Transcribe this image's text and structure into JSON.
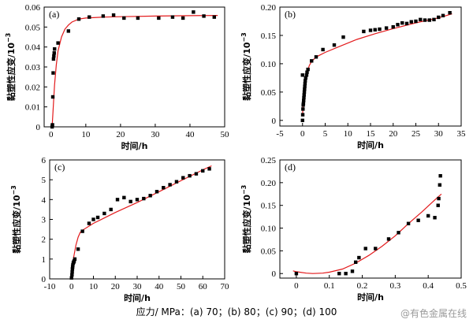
{
  "caption": "应力/ MPa：(a) 70；(b) 80；(c) 90；(d) 100",
  "watermark": "@有色金属在线",
  "chart_data": [
    {
      "panel": "(a)",
      "type": "scatter",
      "xlabel": "时间/h",
      "ylabel": "黏塑性应变/10",
      "ylabel_exp": "−3",
      "xlim": [
        -2,
        50
      ],
      "ylim": [
        0,
        0.06
      ],
      "xticks": [
        0,
        10,
        20,
        30,
        40,
        50
      ],
      "yticks": [
        "0",
        "0.01",
        "0.02",
        "0.03",
        "0.04",
        "0.05",
        "0.06"
      ],
      "points": [
        [
          0.3,
          0
        ],
        [
          0.4,
          0.001
        ],
        [
          0.5,
          0.015
        ],
        [
          0.6,
          0.027
        ],
        [
          0.7,
          0.034
        ],
        [
          0.8,
          0.0355
        ],
        [
          0.9,
          0.037
        ],
        [
          1,
          0.039
        ],
        [
          2,
          0.042
        ],
        [
          5,
          0.048
        ],
        [
          8,
          0.054
        ],
        [
          11,
          0.055
        ],
        [
          15,
          0.0555
        ],
        [
          18,
          0.056
        ],
        [
          21,
          0.0545
        ],
        [
          25,
          0.0545
        ],
        [
          31,
          0.0545
        ],
        [
          35,
          0.055
        ],
        [
          38,
          0.0545
        ],
        [
          41,
          0.0575
        ],
        [
          44,
          0.0555
        ],
        [
          47,
          0.055
        ]
      ],
      "fit": [
        [
          0.3,
          0
        ],
        [
          0.5,
          0.006
        ],
        [
          0.8,
          0.015
        ],
        [
          1,
          0.021
        ],
        [
          1.5,
          0.031
        ],
        [
          2,
          0.038
        ],
        [
          3,
          0.045
        ],
        [
          4,
          0.049
        ],
        [
          5,
          0.051
        ],
        [
          6,
          0.0525
        ],
        [
          8,
          0.054
        ],
        [
          10,
          0.0545
        ],
        [
          15,
          0.055
        ],
        [
          20,
          0.0552
        ],
        [
          30,
          0.0555
        ],
        [
          40,
          0.0557
        ],
        [
          48,
          0.0558
        ]
      ]
    },
    {
      "panel": "(b)",
      "type": "scatter",
      "xlabel": "时间/h",
      "ylabel": "黏塑性应变/10",
      "ylabel_exp": "−3",
      "xlim": [
        -5,
        35
      ],
      "ylim": [
        -0.01,
        0.2
      ],
      "xticks": [
        -5,
        0,
        5,
        10,
        15,
        20,
        25,
        30,
        35
      ],
      "yticks": [
        "0",
        "0.05",
        "0.10",
        "0.15",
        "0.20"
      ],
      "points": [
        [
          0,
          0
        ],
        [
          0.05,
          0.01
        ],
        [
          0.1,
          0.02
        ],
        [
          0.15,
          0.027
        ],
        [
          0.2,
          0.03
        ],
        [
          0.25,
          0.035
        ],
        [
          0.3,
          0.04
        ],
        [
          0.35,
          0.045
        ],
        [
          0.4,
          0.05
        ],
        [
          0.45,
          0.055
        ],
        [
          0.5,
          0.06
        ],
        [
          0.55,
          0.065
        ],
        [
          0.6,
          0.07
        ],
        [
          0.7,
          0.075
        ],
        [
          0.9,
          0.08
        ],
        [
          1,
          0.085
        ],
        [
          1.2,
          0.09
        ],
        [
          0,
          0.08
        ],
        [
          2,
          0.105
        ],
        [
          3,
          0.112
        ],
        [
          4.5,
          0.125
        ],
        [
          7,
          0.133
        ],
        [
          9,
          0.147
        ],
        [
          13.5,
          0.157
        ],
        [
          15,
          0.159
        ],
        [
          16,
          0.16
        ],
        [
          17,
          0.161
        ],
        [
          18.5,
          0.163
        ],
        [
          20,
          0.165
        ],
        [
          21,
          0.169
        ],
        [
          22,
          0.172
        ],
        [
          23,
          0.171
        ],
        [
          24,
          0.174
        ],
        [
          25,
          0.175
        ],
        [
          26,
          0.178
        ],
        [
          27,
          0.177
        ],
        [
          28,
          0.177
        ],
        [
          29,
          0.178
        ],
        [
          30,
          0.182
        ],
        [
          31,
          0.185
        ],
        [
          32.5,
          0.19
        ]
      ],
      "fit": [
        [
          0,
          0.01
        ],
        [
          0.2,
          0.035
        ],
        [
          0.5,
          0.06
        ],
        [
          1,
          0.085
        ],
        [
          1.5,
          0.097
        ],
        [
          2,
          0.104
        ],
        [
          3,
          0.112
        ],
        [
          5,
          0.12
        ],
        [
          8,
          0.13
        ],
        [
          12,
          0.143
        ],
        [
          16,
          0.153
        ],
        [
          20,
          0.162
        ],
        [
          25,
          0.172
        ],
        [
          30,
          0.181
        ],
        [
          33,
          0.188
        ]
      ]
    },
    {
      "panel": "(c)",
      "type": "scatter",
      "xlabel": "时间/h",
      "ylabel": "黏塑性应变/10",
      "ylabel_exp": "−3",
      "xlim": [
        -10,
        70
      ],
      "ylim": [
        0,
        6
      ],
      "xticks": [
        -10,
        0,
        10,
        20,
        30,
        40,
        50,
        60,
        70
      ],
      "yticks": [
        "0",
        "1",
        "2",
        "3",
        "4",
        "5",
        "6"
      ],
      "points": [
        [
          0,
          0.05
        ],
        [
          0.2,
          0.2
        ],
        [
          0.3,
          0.35
        ],
        [
          0.4,
          0.5
        ],
        [
          0.5,
          0.6
        ],
        [
          0.6,
          0.7
        ],
        [
          0.8,
          0.8
        ],
        [
          1,
          0.85
        ],
        [
          1.2,
          0.9
        ],
        [
          1.5,
          1.0
        ],
        [
          3,
          1.5
        ],
        [
          5,
          2.4
        ],
        [
          8,
          2.8
        ],
        [
          10,
          3.0
        ],
        [
          12,
          3.1
        ],
        [
          15,
          3.3
        ],
        [
          18,
          3.5
        ],
        [
          21,
          4.0
        ],
        [
          24,
          4.1
        ],
        [
          27,
          3.9
        ],
        [
          30,
          4.0
        ],
        [
          33,
          4.05
        ],
        [
          36,
          4.2
        ],
        [
          39,
          4.4
        ],
        [
          42,
          4.6
        ],
        [
          45,
          4.75
        ],
        [
          48,
          4.9
        ],
        [
          51,
          5.1
        ],
        [
          54,
          5.2
        ],
        [
          57,
          5.3
        ],
        [
          60,
          5.45
        ],
        [
          63,
          5.55
        ]
      ],
      "fit": [
        [
          0,
          0
        ],
        [
          0.5,
          0.6
        ],
        [
          1,
          1.1
        ],
        [
          2,
          1.7
        ],
        [
          3,
          2.1
        ],
        [
          4,
          2.35
        ],
        [
          5,
          2.45
        ],
        [
          10,
          2.8
        ],
        [
          20,
          3.35
        ],
        [
          30,
          3.85
        ],
        [
          40,
          4.4
        ],
        [
          50,
          4.95
        ],
        [
          60,
          5.5
        ],
        [
          64,
          5.7
        ]
      ]
    },
    {
      "panel": "(d)",
      "type": "scatter",
      "xlabel": "时间/h",
      "ylabel": "黏塑性应变/10",
      "ylabel_exp": "−3",
      "xlim": [
        -0.05,
        0.5
      ],
      "ylim": [
        -0.01,
        0.25
      ],
      "xticks": [
        "0",
        "0.1",
        "0.2",
        "0.3",
        "0.4",
        "0.5"
      ],
      "yticks": [
        "0",
        "0.05",
        "0.10",
        "0.15",
        "0.20",
        "0.25"
      ],
      "points": [
        [
          0,
          0
        ],
        [
          0.13,
          0
        ],
        [
          0.15,
          0
        ],
        [
          0.17,
          0.005
        ],
        [
          0.18,
          0.025
        ],
        [
          0.19,
          0.035
        ],
        [
          0.21,
          0.055
        ],
        [
          0.24,
          0.055
        ],
        [
          0.28,
          0.076
        ],
        [
          0.31,
          0.09
        ],
        [
          0.34,
          0.11
        ],
        [
          0.37,
          0.117
        ],
        [
          0.4,
          0.127
        ],
        [
          0.42,
          0.123
        ],
        [
          0.43,
          0.15
        ],
        [
          0.432,
          0.165
        ],
        [
          0.435,
          0.195
        ],
        [
          0.437,
          0.215
        ]
      ],
      "fit": [
        [
          -0.01,
          0.006
        ],
        [
          0,
          0.004
        ],
        [
          0.03,
          0.001
        ],
        [
          0.05,
          0
        ],
        [
          0.08,
          0.001
        ],
        [
          0.1,
          0.003
        ],
        [
          0.14,
          0.01
        ],
        [
          0.18,
          0.023
        ],
        [
          0.22,
          0.04
        ],
        [
          0.26,
          0.06
        ],
        [
          0.3,
          0.083
        ],
        [
          0.34,
          0.11
        ],
        [
          0.38,
          0.135
        ],
        [
          0.42,
          0.162
        ],
        [
          0.44,
          0.175
        ]
      ]
    }
  ]
}
